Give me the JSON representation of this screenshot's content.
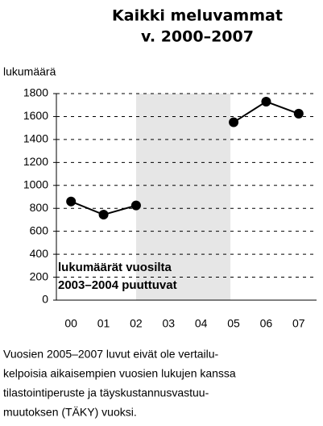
{
  "chart_data": {
    "type": "line",
    "title": "Kaikki meluvammat",
    "subtitle": "v. 2000–2007",
    "y_label": "lukumäärä",
    "categories": [
      "00",
      "01",
      "02",
      "03",
      "04",
      "05",
      "06",
      "07"
    ],
    "series": [
      {
        "name": "Kaikki meluvammat",
        "color": "#000000",
        "values": [
          860,
          745,
          825,
          null,
          null,
          1550,
          1730,
          1625
        ]
      }
    ],
    "ylim": [
      0,
      1800
    ],
    "yticks": [
      0,
      200,
      400,
      600,
      800,
      1000,
      1200,
      1400,
      1600,
      1800
    ],
    "grid": true,
    "annotation": [
      "lukumäärät vuosilta",
      "2003–2004 puuttuvat"
    ],
    "footnote": [
      "Vuosien 2005–2007 luvut eivät ole vertailu-",
      "kelpoisia aikaisempien vuosien lukujen kanssa",
      "tilastointiperuste ja täyskustannusvastuu-",
      "muutoksen (TÄKY) vuoksi."
    ]
  }
}
